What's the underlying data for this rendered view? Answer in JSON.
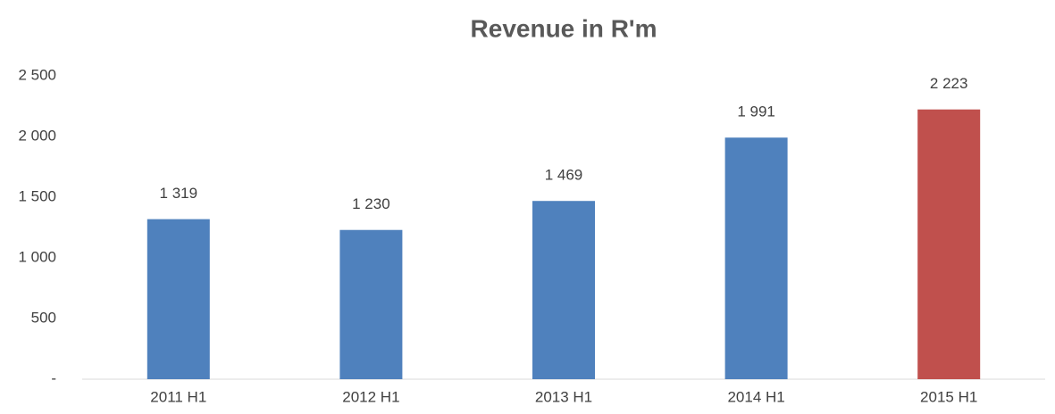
{
  "chart_data": {
    "type": "bar",
    "title": "Revenue in R'm",
    "categories": [
      "2011 H1",
      "2012 H1",
      "2013 H1",
      "2014 H1",
      "2015 H1"
    ],
    "values": [
      1319,
      1230,
      1469,
      1991,
      2223
    ],
    "value_labels": [
      "1 319",
      "1 230",
      "1 469",
      "1 991",
      "2 223"
    ],
    "colors": [
      "#4f81bd",
      "#4f81bd",
      "#4f81bd",
      "#4f81bd",
      "#c0504d"
    ],
    "ylim": [
      0,
      2500
    ],
    "yticks": [
      {
        "value": 0,
        "label": "-"
      },
      500,
      {
        "value": 1000,
        "label": "1 000"
      },
      {
        "value": 1500,
        "label": "1 500"
      },
      {
        "value": 2000,
        "label": "2 000"
      },
      {
        "value": 2500,
        "label": "2 500"
      }
    ],
    "grid": false
  }
}
